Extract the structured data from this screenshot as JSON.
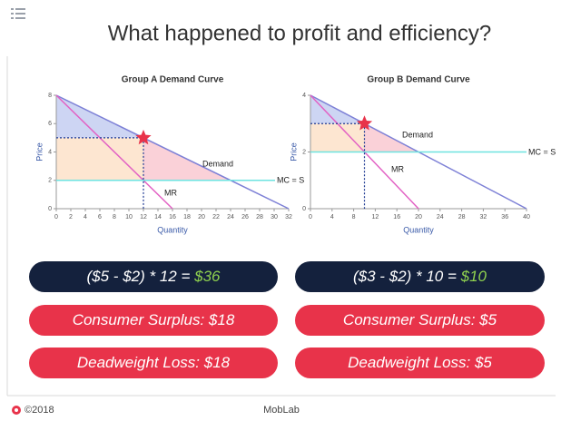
{
  "header": {
    "title": "What happened to profit and efficiency?"
  },
  "chart_data": [
    {
      "type": "line",
      "title": "Group A Demand Curve",
      "xlabel": "Quantity",
      "ylabel": "Price",
      "xlim": [
        0,
        32
      ],
      "xticks": [
        0,
        2,
        4,
        6,
        8,
        10,
        12,
        14,
        16,
        18,
        20,
        22,
        24,
        26,
        28,
        30,
        32
      ],
      "ylim": [
        0,
        8
      ],
      "yticks": [
        0,
        2,
        4,
        6,
        8
      ],
      "series": [
        {
          "name": "Demand",
          "color": "#7d80d6",
          "x": [
            0,
            32
          ],
          "values": [
            8,
            0
          ]
        },
        {
          "name": "MR",
          "color": "#e262c4",
          "x": [
            0,
            16
          ],
          "values": [
            8,
            0
          ]
        },
        {
          "name": "MC = S",
          "color": "#6ee3e0",
          "x": [
            0,
            32
          ],
          "values": [
            2,
            2
          ]
        }
      ],
      "optimum": {
        "x": 12,
        "y": 5
      }
    },
    {
      "type": "line",
      "title": "Group B Demand Curve",
      "xlabel": "Quantity",
      "ylabel": "Price",
      "xlim": [
        0,
        40
      ],
      "xticks": [
        0,
        4,
        8,
        12,
        16,
        20,
        24,
        28,
        32,
        36,
        40
      ],
      "ylim": [
        0,
        4
      ],
      "yticks": [
        0,
        2,
        4
      ],
      "series": [
        {
          "name": "Demand",
          "color": "#7d80d6",
          "x": [
            0,
            40
          ],
          "values": [
            4,
            0
          ]
        },
        {
          "name": "MR",
          "color": "#e262c4",
          "x": [
            0,
            20
          ],
          "values": [
            4,
            0
          ]
        },
        {
          "name": "MC = S",
          "color": "#6ee3e0",
          "x": [
            0,
            40
          ],
          "values": [
            2,
            2
          ]
        }
      ],
      "optimum": {
        "x": 10,
        "y": 3
      }
    }
  ],
  "boxes": {
    "profit": [
      {
        "text": "($5 - $2) * 12 = ",
        "result": "$36"
      },
      {
        "text": "($3 - $2) * 10 = ",
        "result": "$10"
      }
    ],
    "consumer_surplus": [
      "Consumer Surplus: $18",
      "Consumer Surplus: $5"
    ],
    "deadweight_loss": [
      "Deadweight Loss: $18",
      "Deadweight Loss: $5"
    ]
  },
  "footer": {
    "copyright": "©2018",
    "brand": "MobLab"
  }
}
